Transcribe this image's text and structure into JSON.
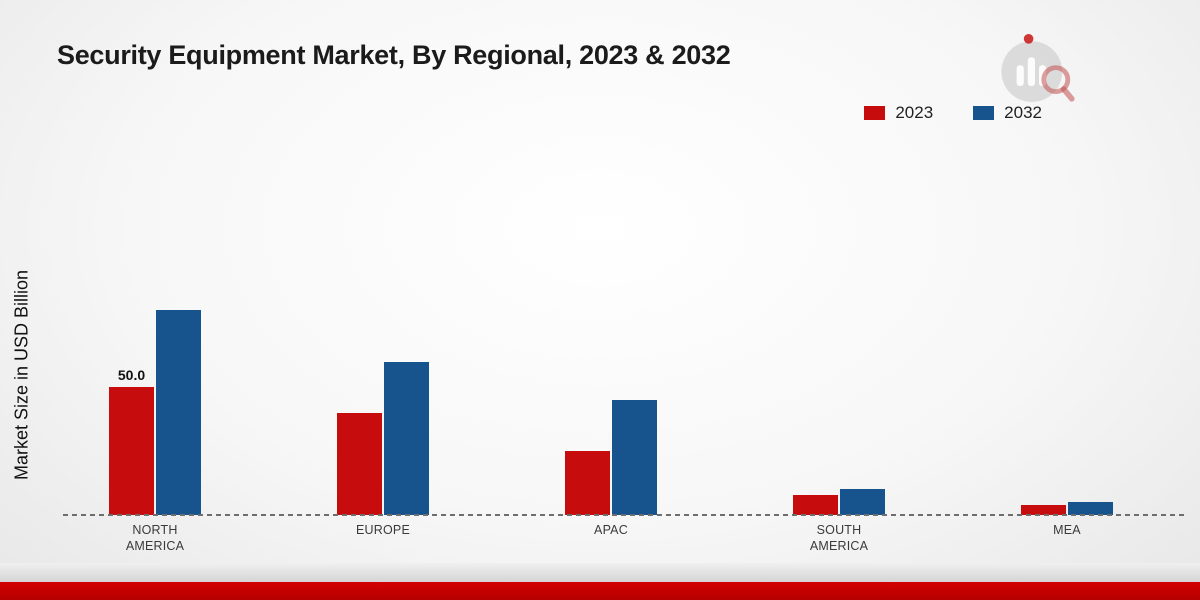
{
  "header": {
    "title": "Security Equipment Market, By Regional, 2023 & 2032"
  },
  "legend": {
    "items": [
      {
        "label": "2023",
        "color": "#c60c0c"
      },
      {
        "label": "2032",
        "color": "#17538d"
      }
    ]
  },
  "chart_data": {
    "type": "bar",
    "title": "Security Equipment Market, By Regional, 2023 & 2032",
    "xlabel": "",
    "ylabel": "Market Size in USD Billion",
    "categories": [
      "NORTH AMERICA",
      "EUROPE",
      "APAC",
      "SOUTH AMERICA",
      "MEA"
    ],
    "series": [
      {
        "name": "2023",
        "color": "#c60c0c",
        "values": [
          50.0,
          40.0,
          25.0,
          8.0,
          4.0
        ]
      },
      {
        "name": "2032",
        "color": "#17538d",
        "values": [
          80.0,
          60.0,
          45.0,
          10.0,
          5.0
        ]
      }
    ],
    "value_labels": [
      {
        "series_index": 0,
        "category_index": 0,
        "text": "50.0"
      }
    ],
    "ylim": [
      0,
      86
    ],
    "grid": false,
    "legend_position": "top-right",
    "baseline_style": "dashed"
  },
  "footer": {
    "band_color": "#c40000"
  }
}
